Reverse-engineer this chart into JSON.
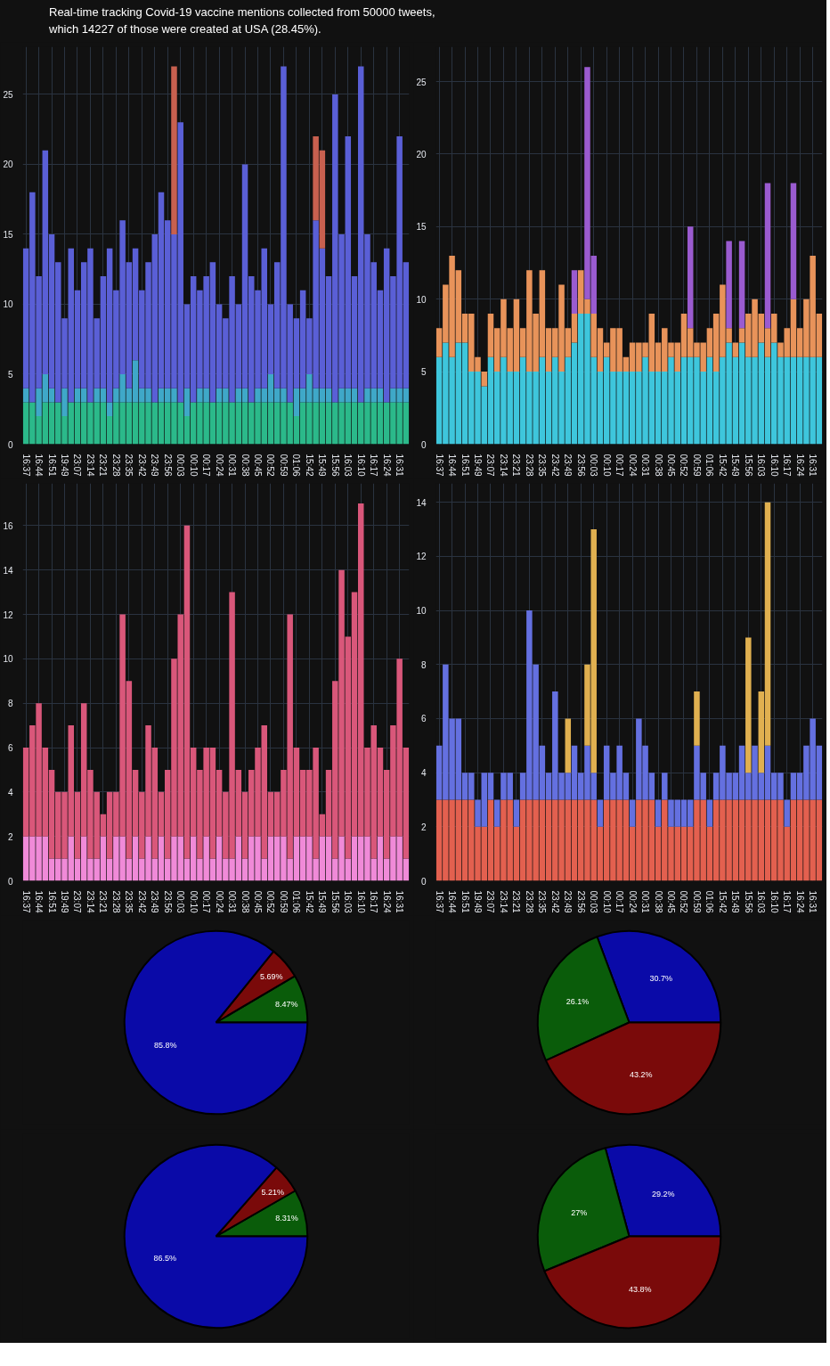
{
  "chart_data": [
    {
      "type": "bar",
      "stacked": true,
      "title": "Real-time tracking Covid-19 vaccine mentions collected from 50000 tweets,\nwhich 14227 of those were created at USA (28.45%).",
      "categories": [
        "16:37",
        null,
        "16:44",
        null,
        "16:51",
        null,
        "19:49",
        null,
        "23:07",
        null,
        "23:14",
        null,
        "23:21",
        null,
        "23:28",
        null,
        "23:35",
        null,
        "23:42",
        null,
        "23:49",
        null,
        "23:56",
        null,
        "00:03",
        null,
        "00:10",
        null,
        "00:17",
        null,
        "00:24",
        null,
        "00:31",
        null,
        "00:38",
        null,
        "00:45",
        null,
        "00:52",
        null,
        "00:59",
        null,
        "01:06",
        null,
        "15:42",
        null,
        "15:49",
        null,
        "15:56",
        null,
        "16:03",
        null,
        "16:10",
        null,
        "16:17",
        null,
        "16:24",
        null,
        "16:31",
        null
      ],
      "ylim": [
        0,
        28.4
      ],
      "yticks": [
        0,
        5,
        10,
        15,
        20,
        25
      ],
      "grid": true,
      "series": [
        {
          "color": "#2bb98a",
          "values": [
            3,
            3,
            2,
            3,
            3,
            3,
            2,
            3,
            3,
            3,
            3,
            3,
            3,
            2,
            3,
            3,
            3,
            3,
            3,
            3,
            3,
            3,
            3,
            3,
            3,
            2,
            3,
            3,
            3,
            3,
            3,
            3,
            3,
            3,
            3,
            3,
            3,
            3,
            3,
            3,
            3,
            3,
            2,
            3,
            3,
            3,
            3,
            3,
            3,
            3,
            3,
            3,
            3,
            3,
            3,
            3,
            3,
            3,
            3,
            3
          ]
        },
        {
          "color": "#3fa8c8",
          "values": [
            1,
            null,
            2,
            2,
            1,
            null,
            2,
            null,
            1,
            1,
            null,
            1,
            1,
            1,
            1,
            2,
            1,
            3,
            1,
            1,
            null,
            1,
            1,
            1,
            null,
            2,
            null,
            1,
            1,
            null,
            1,
            1,
            null,
            1,
            1,
            null,
            1,
            1,
            2,
            1,
            1,
            null,
            2,
            1,
            2,
            1,
            1,
            1,
            null,
            1,
            1,
            1,
            null,
            1,
            1,
            1,
            null,
            1,
            1,
            1
          ]
        },
        {
          "color": "#5a5fd6",
          "values": [
            10,
            15,
            8,
            16,
            11,
            10,
            5,
            11,
            7,
            9,
            11,
            5,
            8,
            11,
            7,
            11,
            9,
            8,
            7,
            9,
            12,
            14,
            12,
            11,
            20,
            6,
            9,
            7,
            8,
            10,
            6,
            5,
            9,
            6,
            16,
            9,
            7,
            10,
            5,
            9,
            23,
            7,
            5,
            7,
            4,
            12,
            10,
            8,
            22,
            11,
            18,
            8,
            24,
            11,
            9,
            7,
            11,
            8,
            18,
            9
          ]
        },
        {
          "color": "#c8604f",
          "values": [
            null,
            null,
            null,
            null,
            null,
            null,
            null,
            null,
            null,
            null,
            null,
            null,
            null,
            null,
            null,
            null,
            null,
            null,
            null,
            null,
            null,
            null,
            null,
            12,
            null,
            null,
            null,
            null,
            null,
            null,
            null,
            null,
            null,
            null,
            null,
            null,
            null,
            null,
            null,
            null,
            null,
            null,
            null,
            null,
            null,
            6,
            7,
            null,
            null,
            null,
            null,
            null,
            null,
            null,
            null,
            null,
            null,
            null,
            null,
            null
          ]
        }
      ]
    },
    {
      "type": "bar",
      "stacked": true,
      "categories": [
        "16:37",
        null,
        "16:44",
        null,
        "16:51",
        null,
        "19:49",
        null,
        "23:07",
        null,
        "23:14",
        null,
        "23:21",
        null,
        "23:28",
        null,
        "23:35",
        null,
        "23:42",
        null,
        "23:49",
        null,
        "23:56",
        null,
        "00:03",
        null,
        "00:10",
        null,
        "00:17",
        null,
        "00:24",
        null,
        "00:31",
        null,
        "00:38",
        null,
        "00:45",
        null,
        "00:52",
        null,
        "00:59",
        null,
        "01:06",
        null,
        "15:42",
        null,
        "15:49",
        null,
        "15:56",
        null,
        "16:03",
        null,
        "16:10",
        null,
        "16:17",
        null,
        "16:24",
        null,
        "16:31",
        null
      ],
      "ylim": [
        0,
        27.4
      ],
      "yticks": [
        0,
        5,
        10,
        15,
        20,
        25
      ],
      "grid": true,
      "series": [
        {
          "color": "#3ec6dc",
          "values": [
            6,
            7,
            6,
            7,
            7,
            5,
            5,
            4,
            6,
            5,
            6,
            5,
            5,
            6,
            5,
            5,
            6,
            5,
            6,
            5,
            6,
            7,
            9,
            9,
            6,
            5,
            6,
            5,
            5,
            5,
            5,
            5,
            6,
            5,
            5,
            5,
            6,
            5,
            6,
            6,
            6,
            5,
            6,
            5,
            6,
            7,
            6,
            7,
            6,
            6,
            7,
            6,
            7,
            6,
            6,
            6,
            6,
            6,
            6,
            6
          ]
        },
        {
          "color": "#e8935a",
          "values": [
            2,
            4,
            7,
            5,
            2,
            4,
            1,
            1,
            3,
            3,
            4,
            3,
            5,
            2,
            7,
            4,
            6,
            3,
            2,
            6,
            2,
            2,
            3,
            1,
            3,
            3,
            1,
            3,
            3,
            1,
            2,
            2,
            1,
            4,
            2,
            3,
            1,
            2,
            3,
            2,
            1,
            2,
            2,
            4,
            5,
            1,
            1,
            1,
            3,
            4,
            2,
            2,
            2,
            1,
            2,
            4,
            2,
            4,
            7,
            3
          ]
        },
        {
          "color": "#9a5bd0",
          "values": [
            null,
            null,
            null,
            null,
            null,
            null,
            null,
            null,
            null,
            null,
            null,
            null,
            null,
            null,
            null,
            null,
            null,
            null,
            null,
            null,
            null,
            3,
            null,
            16,
            4,
            null,
            null,
            null,
            null,
            null,
            null,
            null,
            null,
            null,
            null,
            null,
            null,
            null,
            null,
            7,
            null,
            null,
            null,
            null,
            null,
            6,
            null,
            6,
            null,
            null,
            null,
            10,
            null,
            null,
            null,
            8,
            null,
            null,
            null,
            null
          ]
        }
      ]
    },
    {
      "type": "bar",
      "stacked": true,
      "categories": [
        "16:37",
        null,
        "16:44",
        null,
        "16:51",
        null,
        "19:49",
        null,
        "23:07",
        null,
        "23:14",
        null,
        "23:21",
        null,
        "23:28",
        null,
        "23:35",
        null,
        "23:42",
        null,
        "23:49",
        null,
        "23:56",
        null,
        "00:03",
        null,
        "00:10",
        null,
        "00:17",
        null,
        "00:24",
        null,
        "00:31",
        null,
        "00:38",
        null,
        "00:45",
        null,
        "00:52",
        null,
        "00:59",
        null,
        "01:06",
        null,
        "15:42",
        null,
        "15:49",
        null,
        "15:56",
        null,
        "16:03",
        null,
        "16:10",
        null,
        "16:17",
        null,
        "16:24",
        null,
        "16:31",
        null
      ],
      "ylim": [
        0,
        17.9
      ],
      "yticks": [
        0,
        2,
        4,
        6,
        8,
        10,
        12,
        14,
        16
      ],
      "grid": true,
      "series": [
        {
          "color": "#f08ad8",
          "values": [
            2,
            2,
            2,
            2,
            1,
            1,
            1,
            2,
            1,
            2,
            1,
            1,
            2,
            1,
            2,
            2,
            1,
            2,
            1,
            2,
            1,
            2,
            1,
            2,
            2,
            1,
            2,
            1,
            2,
            1,
            2,
            1,
            1,
            2,
            1,
            2,
            2,
            1,
            2,
            2,
            2,
            1,
            2,
            2,
            2,
            1,
            2,
            2,
            1,
            2,
            1,
            2,
            2,
            2,
            1,
            2,
            1,
            2,
            2,
            1
          ]
        },
        {
          "color": "#d9577a",
          "values": [
            4,
            5,
            6,
            4,
            4,
            3,
            3,
            5,
            3,
            6,
            4,
            3,
            1,
            3,
            2,
            10,
            8,
            3,
            3,
            5,
            5,
            2,
            4,
            8,
            10,
            15,
            4,
            4,
            4,
            5,
            3,
            3,
            12,
            3,
            3,
            3,
            4,
            6,
            2,
            2,
            3,
            11,
            4,
            3,
            3,
            5,
            1,
            3,
            8,
            12,
            10,
            11,
            15,
            4,
            6,
            4,
            4,
            5,
            8,
            5
          ]
        }
      ]
    },
    {
      "type": "bar",
      "stacked": true,
      "categories": [
        "16:37",
        null,
        "16:44",
        null,
        "16:51",
        null,
        "19:49",
        null,
        "23:07",
        null,
        "23:14",
        null,
        "23:21",
        null,
        "23:28",
        null,
        "23:35",
        null,
        "23:42",
        null,
        "23:49",
        null,
        "23:56",
        null,
        "00:03",
        null,
        "00:10",
        null,
        "00:17",
        null,
        "00:24",
        null,
        "00:31",
        null,
        "00:38",
        null,
        "00:45",
        null,
        "00:52",
        null,
        "00:59",
        null,
        "01:06",
        null,
        "15:42",
        null,
        "15:49",
        null,
        "15:56",
        null,
        "16:03",
        null,
        "16:10",
        null,
        "16:17",
        null,
        "16:24",
        null,
        "16:31",
        null
      ],
      "ylim": [
        0,
        14.7
      ],
      "yticks": [
        0,
        2,
        4,
        6,
        8,
        10,
        12,
        14
      ],
      "grid": true,
      "series": [
        {
          "color": "#e3604f",
          "values": [
            3,
            3,
            3,
            3,
            3,
            3,
            2,
            2,
            3,
            2,
            3,
            3,
            2,
            3,
            3,
            3,
            3,
            3,
            3,
            3,
            3,
            3,
            3,
            3,
            3,
            2,
            3,
            3,
            3,
            3,
            2,
            3,
            3,
            3,
            2,
            3,
            2,
            2,
            2,
            2,
            3,
            3,
            2,
            3,
            3,
            3,
            3,
            3,
            3,
            3,
            3,
            3,
            3,
            3,
            2,
            3,
            3,
            3,
            3,
            3
          ]
        },
        {
          "color": "#6470e0",
          "values": [
            2,
            5,
            3,
            3,
            1,
            1,
            1,
            2,
            1,
            1,
            1,
            1,
            1,
            1,
            7,
            5,
            2,
            1,
            4,
            1,
            1,
            2,
            1,
            2,
            1,
            1,
            2,
            1,
            2,
            1,
            1,
            3,
            2,
            1,
            1,
            1,
            1,
            1,
            1,
            1,
            2,
            1,
            1,
            1,
            2,
            1,
            1,
            2,
            1,
            2,
            1,
            2,
            1,
            1,
            1,
            1,
            1,
            2,
            3,
            2
          ]
        },
        {
          "color": "#e0b050",
          "values": [
            null,
            null,
            null,
            null,
            null,
            null,
            null,
            null,
            null,
            null,
            null,
            null,
            null,
            null,
            null,
            null,
            null,
            null,
            null,
            null,
            2,
            null,
            null,
            3,
            9,
            null,
            null,
            null,
            null,
            null,
            null,
            null,
            null,
            null,
            null,
            null,
            null,
            null,
            null,
            null,
            2,
            null,
            null,
            null,
            null,
            null,
            null,
            null,
            5,
            null,
            3,
            9,
            null,
            null,
            null,
            null,
            null,
            null,
            null,
            null
          ]
        }
      ]
    },
    {
      "type": "pie",
      "categories": [
        null,
        null,
        null
      ],
      "values": [
        8.47,
        5.69,
        85.8
      ],
      "colors": [
        "#0a5c0a",
        "#7a0a0a",
        "#0a0aa8"
      ],
      "value_labels": [
        "8.47%",
        "5.69%",
        "85.8%"
      ]
    },
    {
      "type": "pie",
      "categories": [
        null,
        null,
        null
      ],
      "values": [
        30.7,
        26.1,
        43.2
      ],
      "colors": [
        "#0a0aa8",
        "#0a5c0a",
        "#7a0a0a"
      ],
      "value_labels": [
        "30.7%",
        "26.1%",
        "43.2%"
      ]
    },
    {
      "type": "pie",
      "categories": [
        null,
        null,
        null
      ],
      "values": [
        8.31,
        5.21,
        86.5
      ],
      "colors": [
        "#0a5c0a",
        "#7a0a0a",
        "#0a0aa8"
      ],
      "value_labels": [
        "8.31%",
        "5.21%",
        "86.5%"
      ]
    },
    {
      "type": "pie",
      "categories": [
        null,
        null,
        null
      ],
      "values": [
        29.2,
        27,
        43.8
      ],
      "colors": [
        "#0a0aa8",
        "#0a5c0a",
        "#7a0a0a"
      ],
      "value_labels": [
        "29.2%",
        "27%",
        "43.8%"
      ]
    }
  ]
}
